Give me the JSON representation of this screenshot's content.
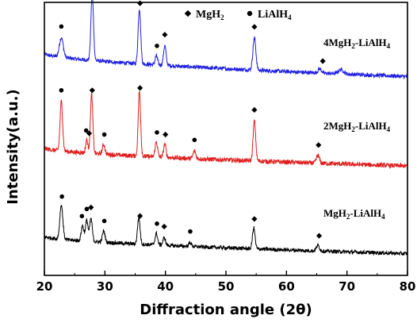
{
  "chart_data": {
    "type": "line",
    "title": "",
    "xlabel": "Diffraction angle (2θ)",
    "ylabel": "Intensity(a.u.)",
    "xlim": [
      20,
      80
    ],
    "x_ticks": [
      20,
      30,
      40,
      50,
      60,
      70,
      80
    ],
    "y_ticks_shown": false,
    "grid": false,
    "legend": {
      "placement": "top-center",
      "entries": [
        {
          "marker": "diamond",
          "label_main": "MgH",
          "label_sub": "2",
          "symbol": "◆"
        },
        {
          "marker": "dot",
          "label_main": "LiAlH",
          "label_sub": "4",
          "symbol": "●"
        }
      ]
    },
    "series": [
      {
        "label_parts": [
          "4MgH",
          "2",
          "-LiAlH",
          "4"
        ],
        "color": "#1f1fe0",
        "baseline_start": 0.72,
        "baseline_end": 0.08,
        "noise": 0.055,
        "peaks": [
          {
            "x": 22.8,
            "h": 0.55,
            "w": 0.45
          },
          {
            "x": 27.9,
            "h": 1.85,
            "w": 0.3
          },
          {
            "x": 35.7,
            "h": 1.55,
            "w": 0.3
          },
          {
            "x": 38.5,
            "h": 0.25,
            "w": 0.3
          },
          {
            "x": 39.9,
            "h": 0.55,
            "w": 0.3
          },
          {
            "x": 54.7,
            "h": 0.9,
            "w": 0.35
          },
          {
            "x": 65.5,
            "h": 0.12,
            "w": 0.4
          },
          {
            "x": 69.0,
            "h": 0.12,
            "w": 0.6
          }
        ],
        "markers": [
          {
            "x": 22.8,
            "type": "dot"
          },
          {
            "x": 27.9,
            "type": "diamond"
          },
          {
            "x": 35.8,
            "type": "diamond"
          },
          {
            "x": 38.6,
            "type": "dot"
          },
          {
            "x": 39.9,
            "type": "diamond"
          },
          {
            "x": 54.7,
            "type": "diamond"
          },
          {
            "x": 66.0,
            "type": "diamond"
          }
        ]
      },
      {
        "label_parts": [
          "2MgH",
          "2",
          "-LiAlH",
          "4"
        ],
        "color": "#e01f1f",
        "baseline_start": 0.55,
        "baseline_end": 0.08,
        "noise": 0.06,
        "peaks": [
          {
            "x": 22.8,
            "h": 1.3,
            "w": 0.3
          },
          {
            "x": 27.0,
            "h": 0.35,
            "w": 0.25
          },
          {
            "x": 27.8,
            "h": 1.55,
            "w": 0.28
          },
          {
            "x": 29.8,
            "h": 0.25,
            "w": 0.3
          },
          {
            "x": 35.7,
            "h": 1.7,
            "w": 0.28
          },
          {
            "x": 38.5,
            "h": 0.4,
            "w": 0.28
          },
          {
            "x": 39.9,
            "h": 0.35,
            "w": 0.28
          },
          {
            "x": 44.8,
            "h": 0.2,
            "w": 0.3
          },
          {
            "x": 54.7,
            "h": 1.05,
            "w": 0.3
          },
          {
            "x": 65.2,
            "h": 0.2,
            "w": 0.35
          }
        ],
        "markers": [
          {
            "x": 22.8,
            "type": "dot"
          },
          {
            "x": 26.9,
            "type": "dot"
          },
          {
            "x": 27.4,
            "type": "diamond"
          },
          {
            "x": 27.9,
            "type": "diamond"
          },
          {
            "x": 29.9,
            "type": "dot"
          },
          {
            "x": 35.8,
            "type": "diamond"
          },
          {
            "x": 38.6,
            "type": "dot"
          },
          {
            "x": 40.0,
            "type": "diamond"
          },
          {
            "x": 44.8,
            "type": "dot"
          },
          {
            "x": 54.7,
            "type": "diamond"
          },
          {
            "x": 65.3,
            "type": "diamond"
          }
        ]
      },
      {
        "label_parts": [
          "MgH",
          "2",
          "-LiAlH",
          "4"
        ],
        "color": "#000000",
        "baseline_start": 0.5,
        "baseline_end": 0.05,
        "noise": 0.05,
        "peaks": [
          {
            "x": 22.8,
            "h": 0.9,
            "w": 0.35
          },
          {
            "x": 26.3,
            "h": 0.4,
            "w": 0.3
          },
          {
            "x": 27.0,
            "h": 0.55,
            "w": 0.3
          },
          {
            "x": 27.7,
            "h": 0.6,
            "w": 0.3
          },
          {
            "x": 29.8,
            "h": 0.3,
            "w": 0.3
          },
          {
            "x": 35.6,
            "h": 0.7,
            "w": 0.3
          },
          {
            "x": 38.5,
            "h": 0.3,
            "w": 0.3
          },
          {
            "x": 39.8,
            "h": 0.2,
            "w": 0.3
          },
          {
            "x": 44.1,
            "h": 0.1,
            "w": 0.3
          },
          {
            "x": 54.6,
            "h": 0.55,
            "w": 0.3
          },
          {
            "x": 65.2,
            "h": 0.15,
            "w": 0.35
          }
        ],
        "markers": [
          {
            "x": 22.9,
            "type": "dot"
          },
          {
            "x": 26.2,
            "type": "dot"
          },
          {
            "x": 27.0,
            "type": "dot"
          },
          {
            "x": 27.7,
            "type": "diamond"
          },
          {
            "x": 29.9,
            "type": "dot"
          },
          {
            "x": 35.8,
            "type": "diamond"
          },
          {
            "x": 38.6,
            "type": "dot"
          },
          {
            "x": 39.8,
            "type": "diamond"
          },
          {
            "x": 44.1,
            "type": "dot"
          },
          {
            "x": 54.7,
            "type": "diamond"
          },
          {
            "x": 65.4,
            "type": "diamond"
          }
        ]
      }
    ]
  }
}
